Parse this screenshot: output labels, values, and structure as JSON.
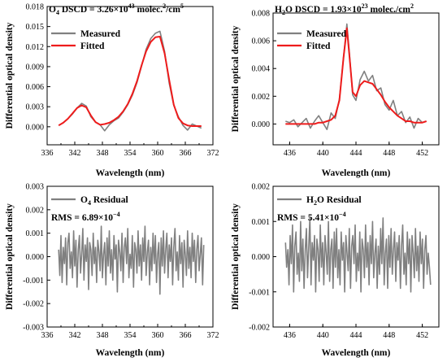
{
  "colors": {
    "measured": "#808080",
    "fitted": "#ee1c1c",
    "residual": "#808080",
    "axis": "#000000"
  },
  "chart_data": [
    {
      "type": "line",
      "title": {
        "species": "O",
        "subscript": "4",
        "label": " DSCD = 3.26×10",
        "exponent": "43",
        "unit": " molec.",
        "unit_sup": "2",
        "unit_tail": "/cm",
        "unit_tail_sup": "5"
      },
      "xlabel": "Wavelength (nm)",
      "ylabel": "Differential optical density",
      "xlim": [
        336,
        372
      ],
      "ylim": [
        -0.0027,
        0.018
      ],
      "xticks": [
        "336",
        "342",
        "348",
        "354",
        "360",
        "366",
        "372"
      ],
      "yticks": [
        "0.000",
        "0.003",
        "0.006",
        "0.009",
        "0.012",
        "0.015",
        "0.018"
      ],
      "legend": [
        {
          "name": "Measured",
          "color": "#808080"
        },
        {
          "name": "Fitted",
          "color": "#ee1c1c"
        }
      ],
      "legend_position": "top-left",
      "series": [
        {
          "name": "Measured",
          "x": [
            338.5,
            339.5,
            340.5,
            341.5,
            342.5,
            343.5,
            344.5,
            345.5,
            346.5,
            347.5,
            348.5,
            349.5,
            350.5,
            351.5,
            352.5,
            353.5,
            354.5,
            355.5,
            356.5,
            357.5,
            358.5,
            359.5,
            360.5,
            361.5,
            362.5,
            363.5,
            364.5,
            365.5,
            366.5,
            367.5,
            368.5,
            369.5
          ],
          "y": [
            0.0002,
            0.0006,
            0.0012,
            0.0019,
            0.0028,
            0.0035,
            0.0031,
            0.0015,
            0.0007,
            0.0003,
            -0.0006,
            0.0003,
            0.0009,
            0.0013,
            0.0022,
            0.0033,
            0.0047,
            0.0066,
            0.0091,
            0.0116,
            0.0132,
            0.014,
            0.0143,
            0.0113,
            0.0065,
            0.0032,
            0.0015,
            0.0002,
            -0.0005,
            0.0004,
            0.0001,
            -0.0002
          ]
        },
        {
          "name": "Fitted",
          "x": [
            338.5,
            339.5,
            340.5,
            341.5,
            342.5,
            343.5,
            344.5,
            345.5,
            346.5,
            347.5,
            348.5,
            349.5,
            350.5,
            351.5,
            352.5,
            353.5,
            354.5,
            355.5,
            356.5,
            357.5,
            358.5,
            359.5,
            360.5,
            361.5,
            362.5,
            363.5,
            364.5,
            365.5,
            366.5,
            367.5,
            368.5,
            369.5
          ],
          "y": [
            0.0002,
            0.0006,
            0.0012,
            0.002,
            0.0028,
            0.0032,
            0.0029,
            0.0017,
            0.0007,
            0.0003,
            0.0004,
            0.0006,
            0.001,
            0.0015,
            0.0023,
            0.0034,
            0.0049,
            0.0068,
            0.0092,
            0.0113,
            0.0127,
            0.0134,
            0.0135,
            0.011,
            0.007,
            0.0033,
            0.0013,
            0.0005,
            0.0002,
            0.0001,
            0.0001,
            0.0001
          ]
        }
      ]
    },
    {
      "type": "line",
      "title": {
        "species": "H",
        "subscript": "2",
        "label": "O DSCD = 1.93×10",
        "exponent": "23",
        "unit": " molec./cm",
        "unit_sup": "2",
        "unit_tail": "",
        "unit_tail_sup": ""
      },
      "xlabel": "Wavelength (nm)",
      "ylabel": "Differential optical density",
      "xlim": [
        434,
        454
      ],
      "ylim": [
        -0.0015,
        0.008
      ],
      "xticks": [
        "436",
        "440",
        "444",
        "448",
        "452"
      ],
      "yticks": [
        "0.000",
        "0.002",
        "0.004",
        "0.006",
        "0.008"
      ],
      "legend": [
        {
          "name": "Measured",
          "color": "#808080"
        },
        {
          "name": "Fitted",
          "color": "#ee1c1c"
        }
      ],
      "legend_position": "top-right",
      "series": [
        {
          "name": "Measured",
          "x": [
            435.5,
            436,
            436.5,
            437,
            437.5,
            438,
            438.5,
            439,
            439.5,
            440,
            440.5,
            441,
            441.5,
            442,
            442.5,
            442.9,
            443.2,
            443.6,
            444,
            444.5,
            445,
            445.5,
            446,
            446.5,
            447,
            447.5,
            448,
            448.5,
            449,
            449.5,
            450,
            450.5,
            451,
            451.5,
            452,
            452.5
          ],
          "y": [
            0.0002,
            0.0001,
            0.0003,
            -0.0002,
            0.0001,
            0.0004,
            -0.0003,
            0.0002,
            0.0006,
            0.0001,
            -0.0004,
            0.0008,
            0.0004,
            0.0018,
            0.0048,
            0.0072,
            0.0052,
            0.0021,
            0.0017,
            0.0032,
            0.0038,
            0.0031,
            0.0035,
            0.0024,
            0.0026,
            0.0014,
            0.001,
            0.0017,
            0.0006,
            0.0009,
            0.0001,
            0.0005,
            -0.0003,
            0.0004,
            0.0001,
            0.0002
          ]
        },
        {
          "name": "Fitted",
          "x": [
            435.5,
            436,
            436.5,
            437,
            437.5,
            438,
            438.5,
            439,
            439.5,
            440,
            440.5,
            441,
            441.5,
            442,
            442.5,
            442.9,
            443.2,
            443.6,
            444,
            444.5,
            445,
            445.5,
            446,
            446.5,
            447,
            447.5,
            448,
            448.5,
            449,
            449.5,
            450,
            450.5,
            451,
            451.5,
            452,
            452.5
          ],
          "y": [
            0,
            0,
            0,
            0,
            0,
            0,
            0,
            0,
            0.0001,
            0.0001,
            0.0002,
            0.0003,
            0.0006,
            0.0017,
            0.0048,
            0.0069,
            0.005,
            0.0023,
            0.002,
            0.0028,
            0.0031,
            0.003,
            0.0029,
            0.0025,
            0.0021,
            0.0016,
            0.0012,
            0.0009,
            0.0006,
            0.0004,
            0.0002,
            0.0002,
            0.0001,
            0.0001,
            0.0001,
            0.0002
          ]
        }
      ]
    },
    {
      "type": "line",
      "xlabel": "Wavelength (nm)",
      "ylabel": "Differential optical density",
      "xlim": [
        336,
        372
      ],
      "ylim": [
        -0.003,
        0.003
      ],
      "xticks": [
        "336",
        "342",
        "348",
        "354",
        "360",
        "366",
        "372"
      ],
      "yticks": [
        "-0.003",
        "-0.002",
        "-0.001",
        "0.000",
        "0.001",
        "0.002",
        "0.003"
      ],
      "legend": [
        {
          "species": "O",
          "subscript": "4",
          "name": " Residual",
          "color": "#808080"
        }
      ],
      "legend_position": "top-left",
      "annotation": {
        "label": "RMS = 6.89×10",
        "exponent": "−4"
      },
      "series": [
        {
          "name": "O4 Residual",
          "x_start": 338.5,
          "x_step": 0.25,
          "y": [
            0.0003,
            -0.0008,
            0.0009,
            -0.0011,
            0.0004,
            -0.0003,
            0.0008,
            -0.0012,
            0.0006,
            0.001,
            -0.0005,
            0.0002,
            -0.0009,
            0.0011,
            -0.0004,
            0.0007,
            -0.0013,
            0.0003,
            0.0009,
            -0.0007,
            0.0001,
            0.0012,
            -0.001,
            0.0005,
            -0.0002,
            0.0008,
            -0.0014,
            0.0006,
            0.0003,
            -0.0008,
            0.001,
            -0.0003,
            0.0004,
            -0.0011,
            0.0007,
            0.0002,
            -0.0006,
            0.0013,
            -0.0009,
            0.0001,
            0.0006,
            -0.0012,
            0.0008,
            -0.0004,
            0.0011,
            -0.0007,
            0.0003,
            -0.001,
            0.0009,
            -0.0001,
            0.0005,
            -0.0015,
            0.0007,
            0.0002,
            -0.0006,
            0.001,
            -0.0011,
            0.0004,
            0.0008,
            -0.0003,
            0.0012,
            -0.0009,
            0.0001,
            -0.0005,
            0.0009,
            -0.0013,
            0.0006,
            0.0003,
            -0.0007,
            0.0011,
            -0.0004,
            0.0005,
            -0.001,
            0.0008,
            -0.0002,
            0.0013,
            -0.0008,
            0.0002,
            0.0007,
            -0.0012,
            0.0004,
            -0.0006,
            0.001,
            -0.0003,
            0.0009,
            -0.0011,
            0.0001,
            0.0006,
            -0.0016,
            0.0008,
            -0.0004,
            0.0011,
            -0.0007,
            0.0003,
            0.001,
            -0.0009,
            0.0005,
            -0.0002,
            0.0008,
            -0.0012,
            0.0004,
            0.0012,
            -0.0006,
            0.0002,
            -0.001,
            0.0009,
            -0.0003,
            0.0006,
            -0.0013,
            0.0007,
            0.0001,
            -0.0008,
            0.0011,
            -0.0005,
            0.0004,
            -0.0009,
            0.001,
            -0.0002,
            0.0007,
            -0.0011,
            0.0003,
            0.0009,
            -0.0006,
            0.0001,
            0.0008,
            -0.0012,
            0.0005
          ]
        }
      ]
    },
    {
      "type": "line",
      "xlabel": "Wavelength (nm)",
      "ylabel": "Differential optical density",
      "xlim": [
        434,
        454
      ],
      "ylim": [
        -0.002,
        0.002
      ],
      "xticks": [
        "436",
        "440",
        "444",
        "448",
        "452"
      ],
      "yticks": [
        "-0.002",
        "-0.001",
        "0.000",
        "0.001",
        "0.002"
      ],
      "legend": [
        {
          "species": "H",
          "subscript": "2",
          "name": "O Residual",
          "color": "#808080"
        }
      ],
      "legend_position": "top-left",
      "annotation": {
        "label": "RMS = 5.41×10",
        "exponent": "−4"
      },
      "series": [
        {
          "name": "H2O Residual",
          "x_start": 435.5,
          "x_step": 0.14,
          "y": [
            0.0004,
            -0.0003,
            0.0002,
            -0.0008,
            0.0006,
            -0.0002,
            0.0009,
            -0.001,
            0.0003,
            0.0007,
            -0.0005,
            0.0001,
            -0.0007,
            0.001,
            -0.0004,
            0.0005,
            -0.0009,
            0.0002,
            0.0008,
            -0.0006,
            0.0003,
            0.0011,
            -0.0008,
            0.0004,
            -0.0001,
            0.0006,
            -0.001,
            0.0005,
            0.0002,
            -0.0007,
            0.0009,
            -0.0003,
            0.0004,
            -0.0008,
            0.0006,
            0.0001,
            -0.0005,
            0.001,
            -0.0007,
            0.0002,
            0.0005,
            -0.0009,
            0.0007,
            -0.0003,
            0.0008,
            -0.0006,
            0.0002,
            -0.0008,
            0.0007,
            -0.0001,
            0.0004,
            -0.001,
            0.0006,
            0.0001,
            -0.0004,
            0.0008,
            -0.0009,
            0.0003,
            0.0006,
            -0.0002,
            0.0009,
            -0.0007,
            0.0001,
            -0.0004,
            0.0007,
            -0.001,
            0.0005,
            0.0002,
            -0.0006,
            0.0009,
            -0.0003,
            0.0004,
            -0.0008,
            0.0006,
            -0.0002,
            0.001,
            -0.0006,
            0.0001,
            0.0005,
            -0.0009,
            0.0003,
            -0.0005,
            0.0008,
            -0.0002,
            0.0011,
            -0.0008,
            0.0001,
            0.0005,
            -0.0009,
            0.0006,
            -0.0003,
            0.0008,
            -0.0005,
            0.0002,
            0.0007,
            -0.0007,
            0.0004,
            -0.0001,
            0.0006,
            -0.0009,
            0.0003,
            0.0009,
            -0.0005,
            0.0001,
            -0.0008,
            0.0007,
            -0.0002,
            0.0005,
            -0.001,
            0.0006,
            0.0001,
            -0.0006,
            0.0008,
            -0.0004,
            0.0003,
            -0.0007,
            0.0007,
            -0.0002,
            0.0005,
            -0.0009,
            0.0002,
            0.0006,
            -0.0005,
            0.0001,
            -0.0003,
            -0.0008
          ]
        }
      ]
    }
  ]
}
